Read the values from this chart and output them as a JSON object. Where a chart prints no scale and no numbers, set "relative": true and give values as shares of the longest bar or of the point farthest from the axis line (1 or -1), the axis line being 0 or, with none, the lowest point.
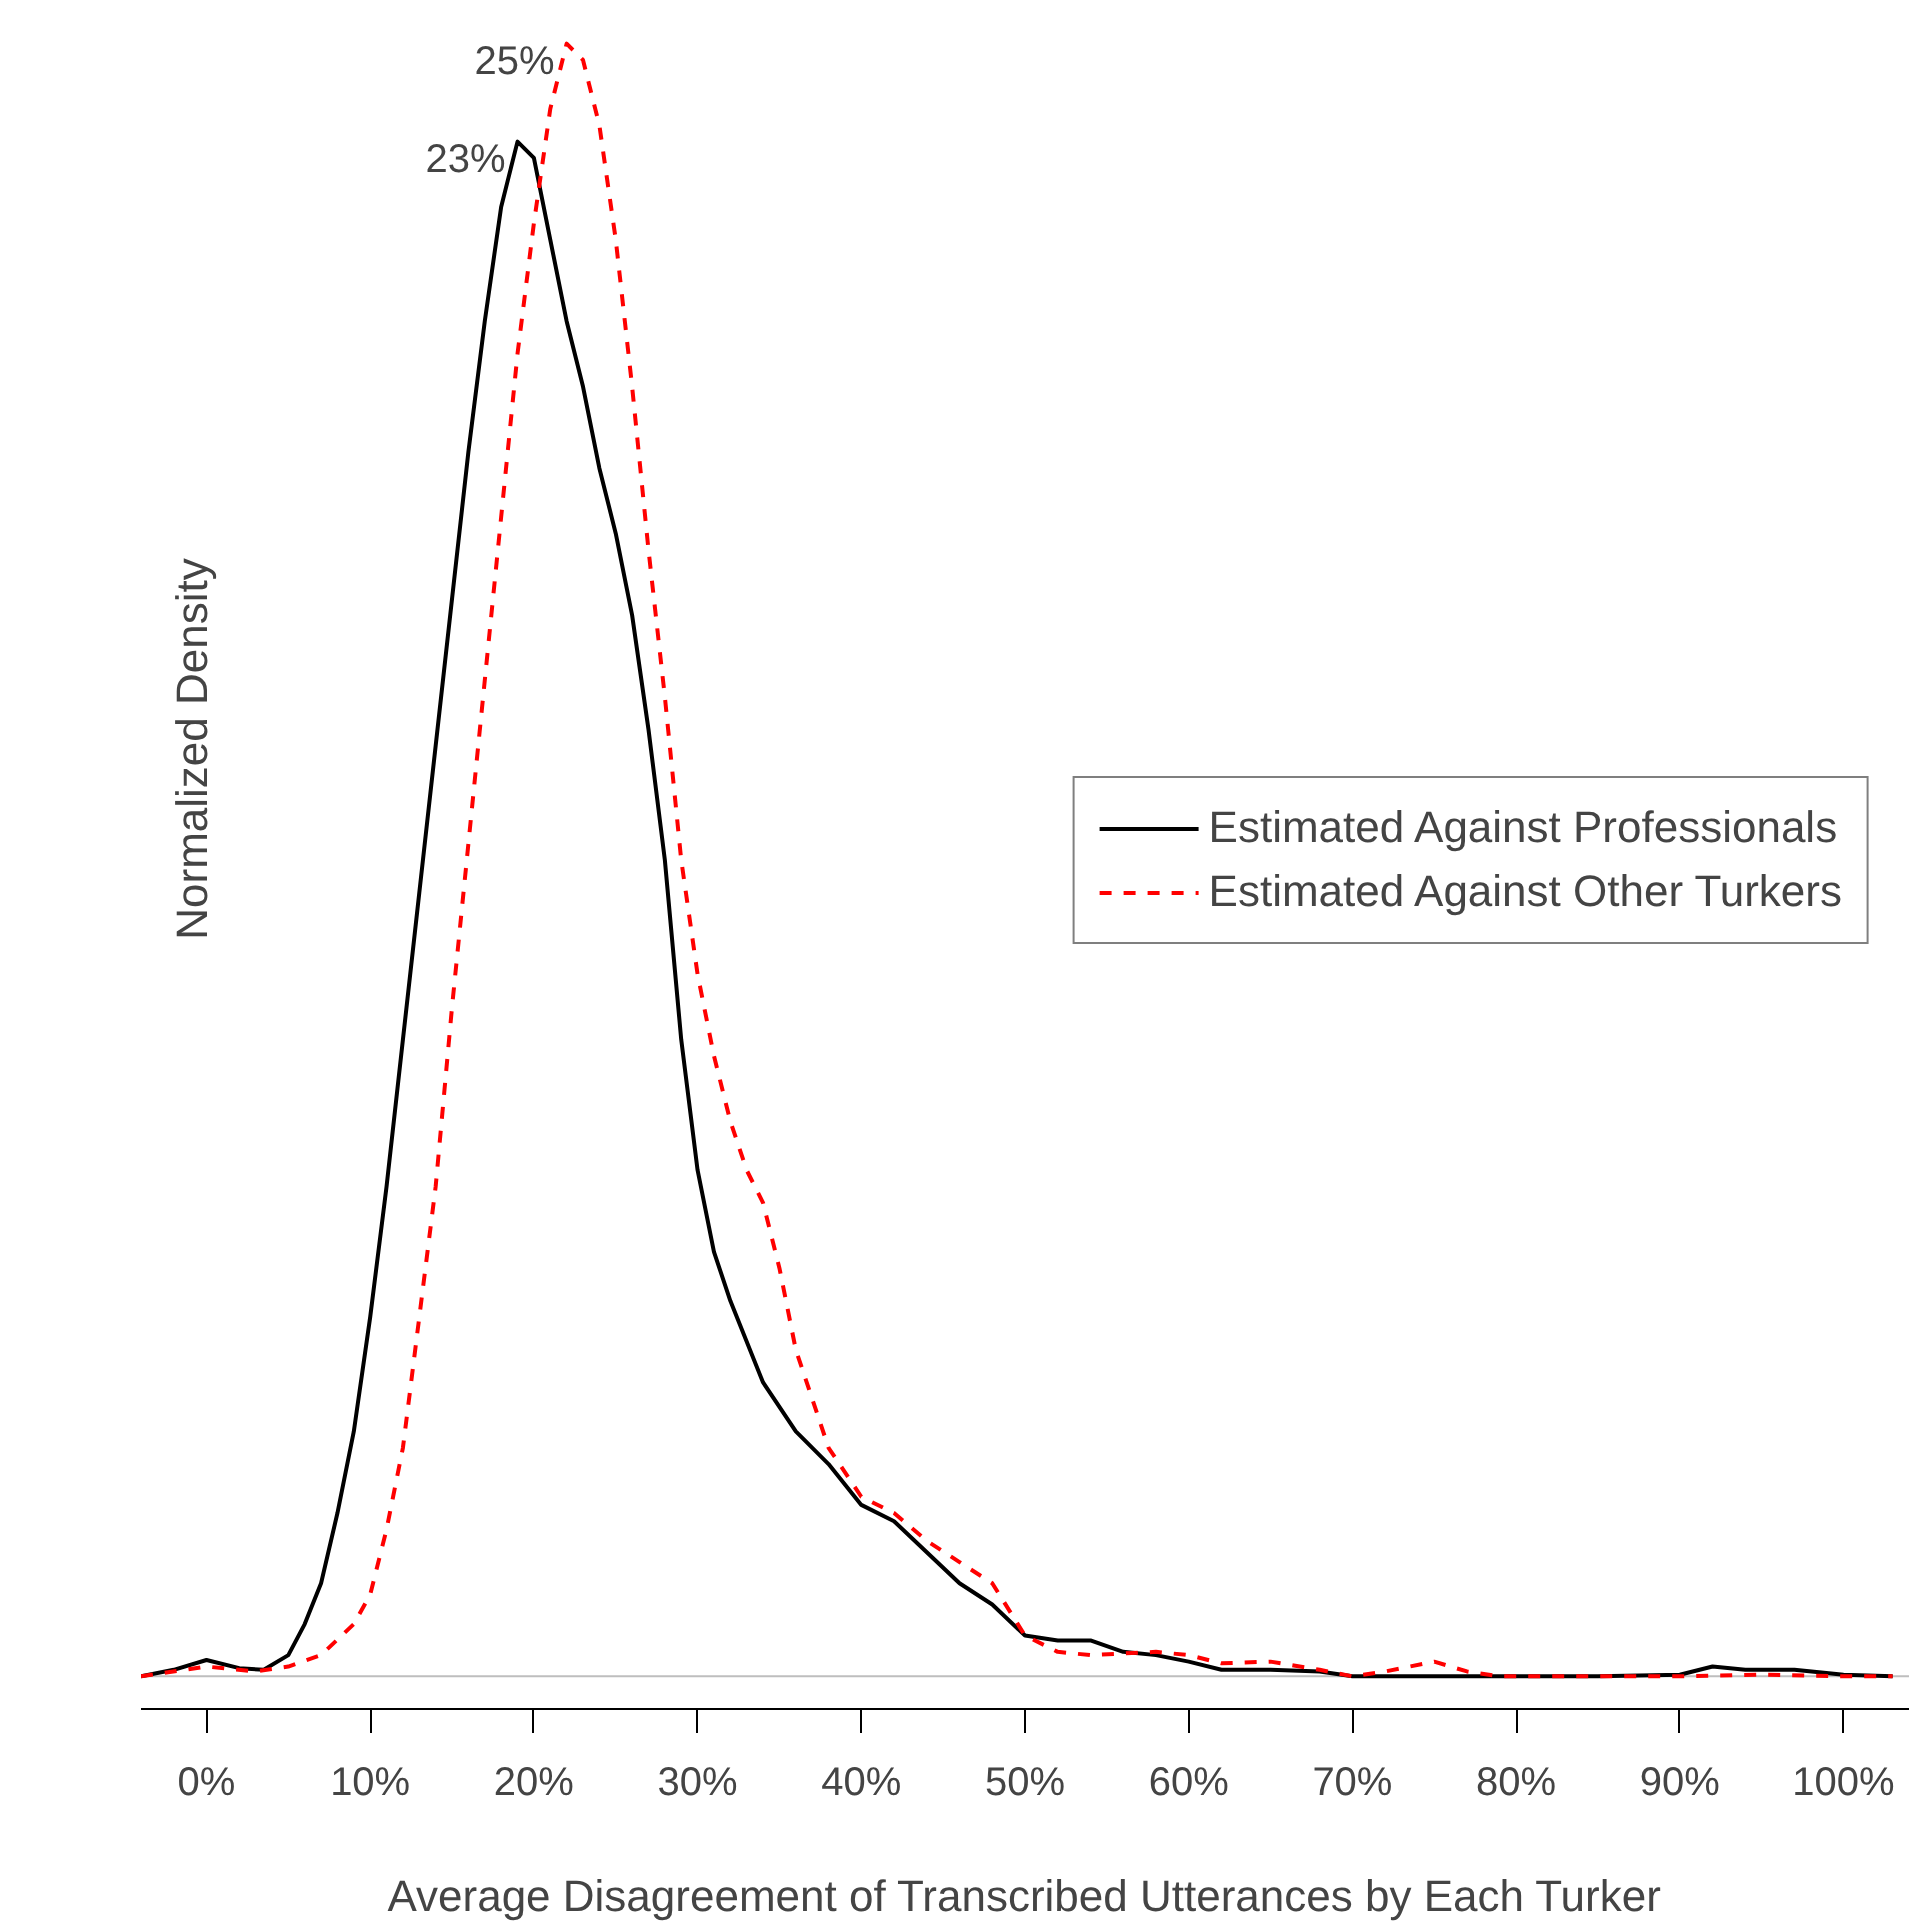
{
  "chart_data": {
    "type": "line",
    "relative": true,
    "xlabel": "Average Disagreement of Transcribed Utterances by Each Turker",
    "ylabel": "Normalized Density",
    "xlim": [
      -4,
      104
    ],
    "xticks": [
      {
        "value": 0,
        "label": "0%"
      },
      {
        "value": 10,
        "label": "10%"
      },
      {
        "value": 20,
        "label": "20%"
      },
      {
        "value": 30,
        "label": "30%"
      },
      {
        "value": 40,
        "label": "40%"
      },
      {
        "value": 50,
        "label": "50%"
      },
      {
        "value": 60,
        "label": "60%"
      },
      {
        "value": 70,
        "label": "70%"
      },
      {
        "value": 80,
        "label": "80%"
      },
      {
        "value": 90,
        "label": "90%"
      },
      {
        "value": 100,
        "label": "100%"
      }
    ],
    "series": [
      {
        "name": "Estimated Against Professionals",
        "color": "#000000",
        "line_style": "solid",
        "x": [
          -4,
          -2,
          0,
          2,
          3.5,
          5,
          6,
          7,
          8,
          9,
          10,
          11,
          12,
          13,
          14,
          15,
          16,
          17,
          18,
          19,
          20,
          21,
          22,
          23,
          24,
          25,
          26,
          27,
          28,
          29,
          30,
          31,
          32,
          34,
          36,
          38,
          40,
          42,
          44,
          46,
          48,
          50,
          52,
          54,
          56,
          58,
          60,
          62,
          65,
          68,
          70,
          75,
          80,
          85,
          90,
          92,
          94,
          97,
          100,
          103
        ],
        "values": [
          0,
          0.004,
          0.01,
          0.005,
          0.004,
          0.013,
          0.032,
          0.057,
          0.1,
          0.15,
          0.22,
          0.3,
          0.39,
          0.48,
          0.57,
          0.66,
          0.75,
          0.83,
          0.9,
          0.94,
          0.93,
          0.88,
          0.83,
          0.79,
          0.74,
          0.7,
          0.65,
          0.58,
          0.5,
          0.39,
          0.31,
          0.26,
          0.23,
          0.18,
          0.15,
          0.13,
          0.105,
          0.095,
          0.076,
          0.057,
          0.044,
          0.025,
          0.022,
          0.022,
          0.015,
          0.013,
          0.009,
          0.004,
          0.004,
          0.003,
          0,
          0,
          0,
          0,
          0.001,
          0.006,
          0.004,
          0.004,
          0.001,
          0
        ]
      },
      {
        "name": "Estimated Against Other Turkers",
        "color": "#ff0000",
        "line_style": "dashed",
        "x": [
          -4,
          0,
          3,
          5,
          7,
          9,
          10,
          11,
          12,
          13,
          14,
          15,
          16,
          17,
          18,
          19,
          20,
          21,
          22,
          23,
          24,
          25,
          26,
          27,
          28,
          29,
          30,
          31,
          32,
          33,
          34,
          35,
          36,
          38,
          40,
          42,
          44,
          46,
          48,
          50,
          52,
          54,
          56,
          58,
          60,
          62,
          65,
          68,
          70,
          72,
          75,
          77,
          79,
          85,
          90,
          95,
          100,
          103
        ],
        "values": [
          0,
          0.006,
          0.003,
          0.006,
          0.013,
          0.032,
          0.05,
          0.09,
          0.14,
          0.22,
          0.3,
          0.41,
          0.51,
          0.61,
          0.71,
          0.81,
          0.89,
          0.96,
          1.0,
          0.99,
          0.95,
          0.88,
          0.79,
          0.69,
          0.6,
          0.5,
          0.43,
          0.38,
          0.34,
          0.31,
          0.29,
          0.25,
          0.2,
          0.14,
          0.11,
          0.1,
          0.083,
          0.07,
          0.057,
          0.025,
          0.015,
          0.013,
          0.014,
          0.015,
          0.013,
          0.008,
          0.009,
          0.004,
          0,
          0.003,
          0.009,
          0.003,
          0,
          0,
          0,
          0.001,
          0,
          0
        ]
      }
    ],
    "ref_lines": [
      {
        "axis": "y",
        "value": 0,
        "color": "#bebebe"
      }
    ],
    "annotations": [
      {
        "text": "23%",
        "x": 19,
        "y": 0.94
      },
      {
        "text": "25%",
        "x": 22,
        "y": 1.0
      }
    ],
    "legend": "right",
    "grid": false
  }
}
